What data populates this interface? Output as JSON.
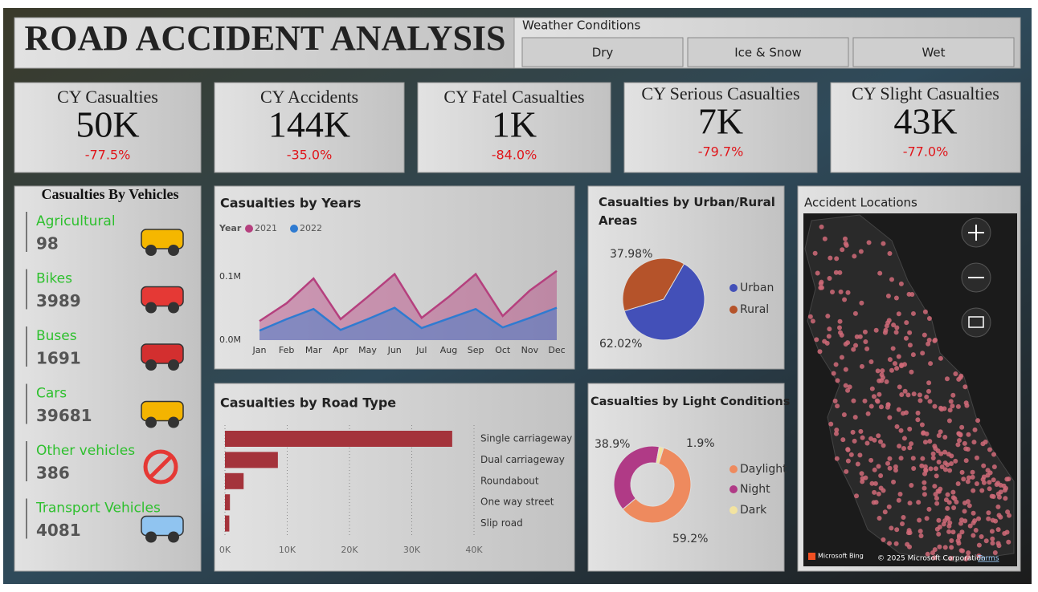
{
  "header": {
    "title": "ROAD ACCIDENT ANALYSIS"
  },
  "weather": {
    "title": "Weather Conditions",
    "options": [
      "Dry",
      "Ice & Snow",
      "Wet"
    ]
  },
  "kpis": [
    {
      "label": "CY Casualties",
      "value": "50K",
      "change": "-77.5%"
    },
    {
      "label": "CY Accidents",
      "value": "144K",
      "change": "-35.0%"
    },
    {
      "label": "CY Fatel Casualties",
      "value": "1K",
      "change": "-84.0%"
    },
    {
      "label": "CY Serious Casualties",
      "value": "7K",
      "change": "-79.7%"
    },
    {
      "label": "CY Slight Casualties",
      "value": "43K",
      "change": "-77.0%"
    }
  ],
  "vehicles": {
    "title": "Casualties By Vehicles",
    "items": [
      {
        "name": "Agricultural",
        "value": 98
      },
      {
        "name": "Bikes",
        "value": 3989
      },
      {
        "name": "Buses",
        "value": 1691
      },
      {
        "name": "Cars",
        "value": 39681
      },
      {
        "name": "Other vehicles",
        "value": 386
      },
      {
        "name": "Transport Vehicles",
        "value": 4081
      }
    ]
  },
  "chart_data": [
    {
      "type": "area",
      "title": "Casualties by Years",
      "legend_title": "Year",
      "categories": [
        "Jan",
        "Feb",
        "Mar",
        "Apr",
        "May",
        "Jun",
        "Jul",
        "Aug",
        "Sep",
        "Oct",
        "Nov",
        "Dec"
      ],
      "series": [
        {
          "name": "2021",
          "color": "#b5407e",
          "values": [
            30000,
            58000,
            97000,
            33000,
            68000,
            104000,
            35000,
            68000,
            104000,
            38000,
            78000,
            109000
          ]
        },
        {
          "name": "2022",
          "color": "#2f7bd1",
          "values": [
            15000,
            33000,
            49000,
            16000,
            33000,
            51000,
            19000,
            34000,
            49000,
            20000,
            35000,
            51000
          ]
        }
      ],
      "ylim": [
        0,
        120000
      ],
      "yticks": [
        {
          "value": 0,
          "label": "0.0M"
        },
        {
          "value": 100000,
          "label": "0.1M"
        }
      ]
    },
    {
      "type": "hbar",
      "title": "Casualties by Road Type",
      "categories": [
        "Single carriageway",
        "Dual carriageway",
        "Roundabout",
        "One way street",
        "Slip road"
      ],
      "values": [
        36500,
        8500,
        3000,
        800,
        700
      ],
      "color": "#a4333b",
      "xlim": [
        0,
        40000
      ],
      "xticks": [
        {
          "value": 0,
          "label": "0K"
        },
        {
          "value": 10000,
          "label": "10K"
        },
        {
          "value": 20000,
          "label": "20K"
        },
        {
          "value": 30000,
          "label": "30K"
        },
        {
          "value": 40000,
          "label": "40K"
        }
      ],
      "grid": true
    },
    {
      "type": "pie",
      "title": "Casualties by Urban/Rural Areas",
      "categories": [
        "Urban",
        "Rural"
      ],
      "values": [
        62.02,
        37.98
      ],
      "value_labels": [
        "62.02%",
        "37.98%"
      ],
      "colors": [
        "#4350b8",
        "#b5532a"
      ]
    },
    {
      "type": "donut",
      "title": "Casualties by Light Conditions",
      "categories": [
        "Daylight",
        "Night",
        "Dark"
      ],
      "values": [
        59.2,
        38.9,
        1.9
      ],
      "value_labels": [
        "59.2%",
        "38.9%",
        "1.9%"
      ],
      "colors": [
        "#ee8a5e",
        "#b03a86",
        "#f2e3a0"
      ]
    }
  ],
  "map": {
    "title": "Accident Locations",
    "provider": "Microsoft Bing",
    "copyright": "© 2025 Microsoft Corporation",
    "terms": "Terms"
  }
}
